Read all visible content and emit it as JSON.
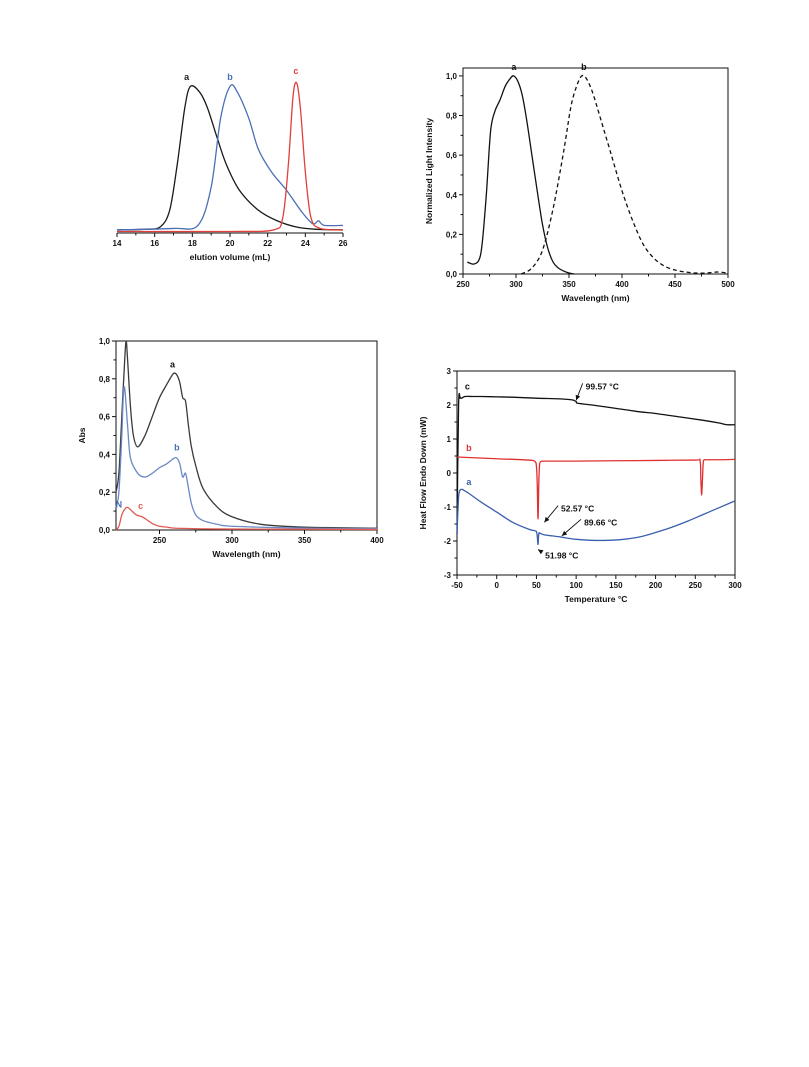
{
  "chart_data": [
    {
      "type": "line",
      "xlabel": "elution volume (mL)",
      "ylabel": "",
      "xlim": [
        14,
        26
      ],
      "ylim": [
        0,
        1.08
      ],
      "xticks": [
        "14",
        "16",
        "18",
        "20",
        "22",
        "24",
        "26"
      ],
      "yticks": [],
      "frame": "x-axis-only",
      "series": [
        {
          "name": "a",
          "color": "#1a1a1a",
          "dash": false,
          "x": [
            14.0,
            15.5,
            16.3,
            16.8,
            17.2,
            17.6,
            17.9,
            18.4,
            18.8,
            19.3,
            19.8,
            20.5,
            21.5,
            22.5,
            23.5,
            24.5,
            26.0
          ],
          "y": [
            0.02,
            0.025,
            0.04,
            0.15,
            0.45,
            0.82,
            0.96,
            0.92,
            0.82,
            0.63,
            0.45,
            0.28,
            0.15,
            0.08,
            0.04,
            0.025,
            0.02
          ]
        },
        {
          "name": "b",
          "color": "#4a6fb5",
          "dash": false,
          "x": [
            14.0,
            17.0,
            18.3,
            19.0,
            19.5,
            20.0,
            20.4,
            21.0,
            21.5,
            22.2,
            23.0,
            23.8,
            24.4,
            24.7,
            25.0,
            26.0
          ],
          "y": [
            0.02,
            0.03,
            0.05,
            0.3,
            0.75,
            0.96,
            0.92,
            0.75,
            0.55,
            0.4,
            0.28,
            0.14,
            0.06,
            0.08,
            0.05,
            0.05
          ]
        },
        {
          "name": "c",
          "color": "#e0403a",
          "dash": false,
          "x": [
            14.0,
            20.0,
            22.3,
            22.8,
            23.1,
            23.35,
            23.55,
            23.75,
            24.0,
            24.3,
            24.8,
            26.0
          ],
          "y": [
            0.01,
            0.01,
            0.02,
            0.1,
            0.45,
            0.9,
            0.98,
            0.8,
            0.4,
            0.1,
            0.03,
            0.02
          ]
        }
      ],
      "labels": [
        {
          "text": "a",
          "color": "#1a1a1a",
          "x": 17.7,
          "y": 1.0
        },
        {
          "text": "b",
          "color": "#4a6fb5",
          "x": 20.0,
          "y": 1.0
        },
        {
          "text": "c",
          "color": "#e0403a",
          "x": 23.5,
          "y": 1.04
        }
      ]
    },
    {
      "type": "line",
      "xlabel": "Wavelength (nm)",
      "ylabel": "Normalized Light Intensity",
      "xlim": [
        250,
        500
      ],
      "ylim": [
        0,
        1.04
      ],
      "xticks": [
        "250",
        "300",
        "350",
        "400",
        "450",
        "500"
      ],
      "yticks": [
        "0,0",
        "0,2",
        "0,4",
        "0,6",
        "0,8",
        "1,0"
      ],
      "frame": "box",
      "series": [
        {
          "name": "a",
          "color": "#111111",
          "dash": false,
          "x": [
            254,
            260,
            265,
            268,
            272,
            276,
            280,
            285,
            290,
            295,
            298,
            302,
            306,
            310,
            315,
            320,
            325,
            330,
            335,
            340,
            345,
            350,
            355
          ],
          "y": [
            0.06,
            0.05,
            0.07,
            0.15,
            0.4,
            0.72,
            0.82,
            0.88,
            0.95,
            0.99,
            1.0,
            0.97,
            0.9,
            0.78,
            0.6,
            0.42,
            0.25,
            0.13,
            0.06,
            0.03,
            0.015,
            0.005,
            0.0
          ]
        },
        {
          "name": "b",
          "color": "#111111",
          "dash": true,
          "x": [
            305,
            315,
            325,
            335,
            345,
            352,
            358,
            362,
            366,
            372,
            380,
            390,
            400,
            410,
            420,
            430,
            440,
            450,
            460,
            470,
            480,
            490,
            500
          ],
          "y": [
            0.0,
            0.03,
            0.12,
            0.33,
            0.62,
            0.85,
            0.96,
            1.0,
            0.99,
            0.92,
            0.78,
            0.6,
            0.42,
            0.27,
            0.15,
            0.08,
            0.04,
            0.02,
            0.01,
            0.005,
            0.005,
            0.01,
            0.005
          ]
        }
      ],
      "labels": [
        {
          "text": "a",
          "color": "#111111",
          "x": 298,
          "y": 1.03
        },
        {
          "text": "b",
          "color": "#111111",
          "x": 364,
          "y": 1.03
        }
      ]
    },
    {
      "type": "line",
      "xlabel": "Wavelength (nm)",
      "ylabel": "Abs",
      "xlim": [
        220,
        400
      ],
      "ylim": [
        0,
        1.0
      ],
      "xticks": [
        "250",
        "300",
        "350",
        "400"
      ],
      "yticks": [
        "0,0",
        "0,2",
        "0,4",
        "0,6",
        "0,8",
        "1,0"
      ],
      "frame": "box",
      "series": [
        {
          "name": "a",
          "color": "#3a3a3a",
          "dash": false,
          "x": [
            220,
            222,
            224,
            226,
            227,
            228,
            230,
            232,
            235,
            240,
            245,
            250,
            255,
            258,
            260,
            262,
            264,
            266,
            268,
            270,
            272,
            275,
            280,
            290,
            300,
            320,
            350,
            400
          ],
          "y": [
            0.2,
            0.3,
            0.6,
            0.9,
            1.0,
            0.9,
            0.65,
            0.5,
            0.44,
            0.5,
            0.6,
            0.7,
            0.77,
            0.81,
            0.83,
            0.82,
            0.78,
            0.7,
            0.68,
            0.55,
            0.44,
            0.34,
            0.22,
            0.12,
            0.07,
            0.03,
            0.015,
            0.01
          ]
        },
        {
          "name": "b",
          "color": "#6a8ac6",
          "dash": false,
          "x": [
            220,
            222,
            224,
            225,
            226,
            228,
            230,
            235,
            240,
            245,
            250,
            255,
            260,
            262,
            264,
            266,
            268,
            270,
            272,
            275,
            280,
            290,
            300,
            350,
            400
          ],
          "y": [
            0.12,
            0.2,
            0.5,
            0.7,
            0.75,
            0.55,
            0.38,
            0.3,
            0.28,
            0.3,
            0.33,
            0.35,
            0.38,
            0.38,
            0.35,
            0.28,
            0.3,
            0.22,
            0.14,
            0.08,
            0.05,
            0.03,
            0.02,
            0.01,
            0.008
          ]
        },
        {
          "name": "c",
          "color": "#e05a50",
          "dash": false,
          "x": [
            220,
            222,
            224,
            226,
            228,
            231,
            234,
            238,
            242,
            246,
            250,
            255,
            260,
            270,
            280,
            300,
            350,
            400
          ],
          "y": [
            0.0,
            0.02,
            0.08,
            0.11,
            0.12,
            0.1,
            0.08,
            0.07,
            0.05,
            0.03,
            0.02,
            0.015,
            0.01,
            0.008,
            0.006,
            0.005,
            0.004,
            0.003
          ]
        }
      ],
      "labels": [
        {
          "text": "a",
          "color": "#111111",
          "x": 259,
          "y": 0.86
        },
        {
          "text": "b",
          "color": "#4a6fb5",
          "x": 262,
          "y": 0.42
        },
        {
          "text": "c",
          "color": "#e05a50",
          "x": 237,
          "y": 0.11
        },
        {
          "text": "N",
          "color": "#4a6fb5",
          "x": 222,
          "y": 0.12
        }
      ]
    },
    {
      "type": "line",
      "xlabel": "Temperature °C",
      "ylabel": "Heat Flow Endo Down (mW)",
      "xlim": [
        -50,
        300
      ],
      "ylim": [
        -3,
        3
      ],
      "xticks": [
        "-50",
        "0",
        "50",
        "100",
        "150",
        "200",
        "250",
        "300"
      ],
      "yticks": [
        "-3",
        "-2",
        "-1",
        "0",
        "1",
        "2",
        "3"
      ],
      "frame": "box",
      "series": [
        {
          "name": "c",
          "color": "#111111",
          "dash": false,
          "x": [
            -50,
            -48,
            -46,
            -44,
            -40,
            -30,
            -20,
            0,
            20,
            50,
            80,
            95,
            100,
            102,
            120,
            150,
            180,
            200,
            230,
            260,
            280,
            290,
            300
          ],
          "y": [
            -1.8,
            2.0,
            2.2,
            2.2,
            2.25,
            2.25,
            2.25,
            2.24,
            2.23,
            2.2,
            2.18,
            2.15,
            2.1,
            2.05,
            2.0,
            1.9,
            1.8,
            1.75,
            1.65,
            1.55,
            1.47,
            1.42,
            1.42
          ]
        },
        {
          "name": "b",
          "color": "#e03030",
          "dash": false,
          "x": [
            -50,
            0,
            40,
            48,
            50,
            51,
            52,
            53,
            54,
            56,
            60,
            80,
            100,
            150,
            200,
            250,
            256,
            257,
            258,
            259,
            260,
            261,
            263,
            280,
            300
          ],
          "y": [
            0.47,
            0.42,
            0.38,
            0.34,
            0.2,
            -0.3,
            -1.35,
            -0.3,
            0.25,
            0.34,
            0.35,
            0.35,
            0.35,
            0.36,
            0.37,
            0.38,
            0.36,
            -0.2,
            -0.65,
            -0.2,
            0.3,
            0.38,
            0.39,
            0.39,
            0.4
          ]
        },
        {
          "name": "a",
          "color": "#3a5fad",
          "dash": false,
          "x": [
            -50,
            -49,
            -48,
            -47,
            -46,
            -44,
            -42,
            -35,
            -20,
            0,
            20,
            40,
            48,
            50,
            51,
            52,
            53,
            55,
            60,
            70,
            80,
            90,
            100,
            120,
            140,
            160,
            180,
            200,
            220,
            240,
            260,
            280,
            300
          ],
          "y": [
            -1.8,
            -1.2,
            -0.7,
            -0.55,
            -0.5,
            -0.48,
            -0.5,
            -0.6,
            -0.85,
            -1.15,
            -1.45,
            -1.65,
            -1.7,
            -1.72,
            -1.85,
            -2.1,
            -1.78,
            -1.78,
            -1.82,
            -1.85,
            -1.88,
            -1.92,
            -1.95,
            -1.98,
            -1.98,
            -1.95,
            -1.88,
            -1.75,
            -1.6,
            -1.42,
            -1.22,
            -1.02,
            -0.82
          ]
        }
      ],
      "labels": [
        {
          "text": "c",
          "color": "#111111",
          "x": -37,
          "y": 2.45
        },
        {
          "text": "b",
          "color": "#e03030",
          "x": -35,
          "y": 0.65
        },
        {
          "text": "a",
          "color": "#3a5fad",
          "x": -35,
          "y": -0.35
        }
      ],
      "annotations": [
        {
          "text": "99.57 °C",
          "tx": 112,
          "ty": 2.55,
          "ax": 100,
          "ay": 2.14
        },
        {
          "text": "52.57 °C",
          "tx": 81,
          "ty": -1.05,
          "ax": 60,
          "ay": -1.45
        },
        {
          "text": "89.66 °C",
          "tx": 110,
          "ty": -1.45,
          "ax": 82,
          "ay": -1.85
        },
        {
          "text": "51.98 °C",
          "tx": 61,
          "ty": -2.42,
          "ax": 52,
          "ay": -2.25
        }
      ]
    }
  ]
}
